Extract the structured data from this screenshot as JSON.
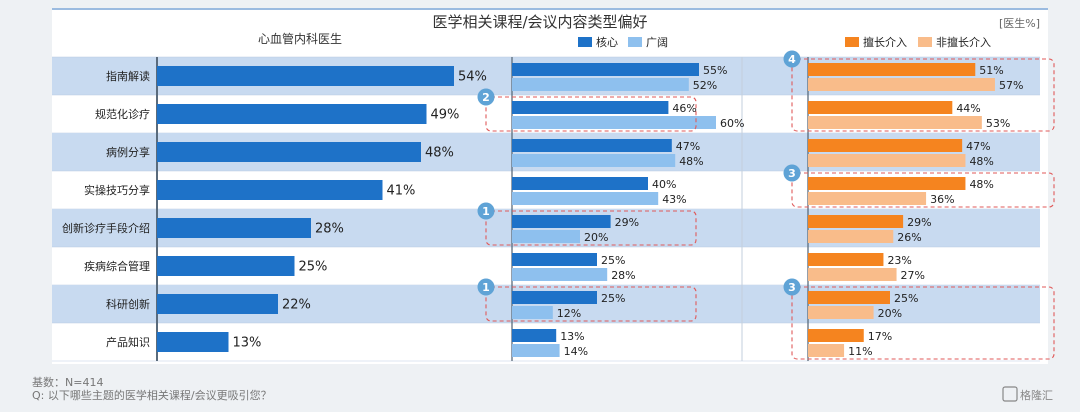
{
  "title": "医学相关课程/会议内容类型偏好",
  "subtitle": "心血管内科医生",
  "unit": "[医生%]",
  "legend_mid": [
    "核心",
    "广阔"
  ],
  "legend_right": [
    "擅长介入",
    "非擅长介入"
  ],
  "footnote_base": "基数：N=414",
  "footnote_q": "Q:  以下哪些主题的医学相关课程/会议更吸引您？",
  "watermark": "格隆汇",
  "colors": {
    "overall": "#1e72c8",
    "core": "#1e72c8",
    "broad": "#8ec0ee",
    "interv": "#f5841f",
    "noninterv": "#f9bc8a",
    "band": "#c8daf0",
    "callout": "#e05a5a",
    "badge": "#5fa3d6"
  },
  "chart_data": {
    "type": "bar",
    "categories": [
      "指南解读",
      "规范化诊疗",
      "病例分享",
      "实操技巧分享",
      "创新诊疗手段介绍",
      "疾病综合管理",
      "科研创新",
      "产品知识"
    ],
    "panels": [
      {
        "series": [
          {
            "name": "",
            "values": [
              54,
              49,
              48,
              41,
              28,
              25,
              22,
              13
            ]
          }
        ],
        "label_suffix": "%"
      },
      {
        "series": [
          {
            "name": "核心",
            "values": [
              55,
              46,
              47,
              40,
              29,
              25,
              25,
              13
            ]
          },
          {
            "name": "广阔",
            "values": [
              52,
              60,
              48,
              43,
              20,
              28,
              12,
              14
            ]
          }
        ],
        "label_suffix": "%"
      },
      {
        "series": [
          {
            "name": "擅长介入",
            "values": [
              51,
              44,
              47,
              48,
              29,
              23,
              25,
              17
            ]
          },
          {
            "name": "非擅长介入",
            "values": [
              57,
              53,
              48,
              36,
              26,
              27,
              20,
              11
            ]
          }
        ],
        "label_suffix": "%"
      }
    ],
    "callouts": [
      {
        "panel": "mid",
        "rows": [
          1,
          1
        ],
        "badge": "2"
      },
      {
        "panel": "mid",
        "rows": [
          4,
          4
        ],
        "badge": "1"
      },
      {
        "panel": "mid",
        "rows": [
          6,
          6
        ],
        "badge": "1"
      },
      {
        "panel": "right",
        "rows": [
          0,
          1
        ],
        "badge": "4"
      },
      {
        "panel": "right",
        "rows": [
          3,
          3
        ],
        "badge": "3"
      },
      {
        "panel": "right",
        "rows": [
          6,
          7
        ],
        "badge": "3"
      }
    ],
    "xlim": [
      0,
      100
    ],
    "legend": "top"
  }
}
